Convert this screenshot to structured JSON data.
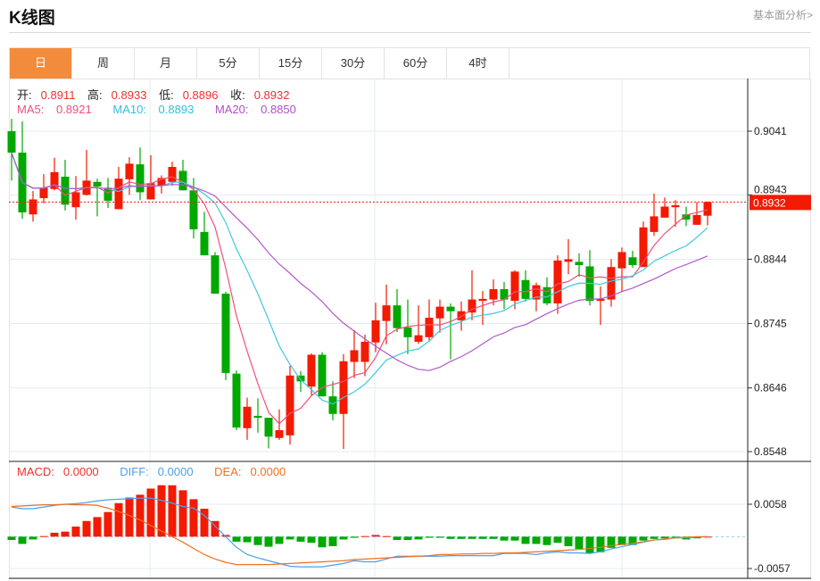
{
  "header": {
    "title": "K线图",
    "fundamental_link": "基本面分析>"
  },
  "tabs": [
    {
      "label": "日",
      "active": true
    },
    {
      "label": "周"
    },
    {
      "label": "月"
    },
    {
      "label": "5分"
    },
    {
      "label": "15分"
    },
    {
      "label": "30分"
    },
    {
      "label": "60分"
    },
    {
      "label": "4时"
    }
  ],
  "ohlc_info": {
    "open_label": "开:",
    "open": "0.8911",
    "high_label": "高:",
    "high": "0.8933",
    "low_label": "低:",
    "low": "0.8896",
    "close_label": "收:",
    "close": "0.8932"
  },
  "ma_info": {
    "ma5_label": "MA5: ",
    "ma5": "0.8921",
    "ma10_label": "MA10: ",
    "ma10": "0.8893",
    "ma20_label": "MA20: ",
    "ma20": "0.8850"
  },
  "macd_info": {
    "macd_label": "MACD:",
    "macd": "0.0000",
    "diff_label": "DIFF:",
    "diff": "0.0000",
    "dea_label": "DEA:",
    "dea": "0.0000"
  },
  "colors": {
    "up": "#f21a00",
    "down": "#00a800",
    "ma5": "#f0507a",
    "ma10": "#40c8e0",
    "ma20": "#b058c8",
    "diff": "#4aa0f0",
    "dea": "#f07020",
    "active_tab": "#f28c3c"
  },
  "chart_data": [
    {
      "type": "candlestick",
      "title": "K线图",
      "price_ticks": [
        "0.9041",
        "0.8943",
        "0.8844",
        "0.8745",
        "0.8646",
        "0.8548"
      ],
      "ylim": [
        0.8548,
        0.9041
      ],
      "last_price": "0.8932",
      "candles": [
        [
          0.9041,
          0.9008,
          0.906,
          0.8965
        ],
        [
          0.9008,
          0.8916,
          0.9056,
          0.8906
        ],
        [
          0.8913,
          0.8936,
          0.8949,
          0.8902
        ],
        [
          0.8938,
          0.8954,
          0.8975,
          0.893
        ],
        [
          0.8952,
          0.8978,
          0.9,
          0.895
        ],
        [
          0.8971,
          0.8928,
          0.8997,
          0.8919
        ],
        [
          0.8924,
          0.8947,
          0.8972,
          0.8905
        ],
        [
          0.8943,
          0.8965,
          0.9012,
          0.8942
        ],
        [
          0.8963,
          0.8956,
          0.8968,
          0.891
        ],
        [
          0.8954,
          0.8934,
          0.8969,
          0.8923
        ],
        [
          0.8921,
          0.8968,
          0.8986,
          0.8921
        ],
        [
          0.8967,
          0.8991,
          0.9001,
          0.8943
        ],
        [
          0.899,
          0.8947,
          0.9016,
          0.8935
        ],
        [
          0.8936,
          0.8961,
          0.9004,
          0.8936
        ],
        [
          0.8957,
          0.8969,
          0.8973,
          0.8945
        ],
        [
          0.8963,
          0.8986,
          0.8994,
          0.8957
        ],
        [
          0.898,
          0.895,
          0.8997,
          0.895
        ],
        [
          0.895,
          0.889,
          0.8969,
          0.8876
        ],
        [
          0.8886,
          0.885,
          0.8917,
          0.885
        ],
        [
          0.885,
          0.8791,
          0.8855,
          0.8791
        ],
        [
          0.8791,
          0.8669,
          0.8794,
          0.8658
        ],
        [
          0.8668,
          0.8585,
          0.8673,
          0.8581
        ],
        [
          0.8584,
          0.8617,
          0.8631,
          0.8566
        ],
        [
          0.8603,
          0.86,
          0.863,
          0.8577
        ],
        [
          0.86,
          0.8571,
          0.86,
          0.8553
        ],
        [
          0.8569,
          0.8581,
          0.8613,
          0.8566
        ],
        [
          0.8573,
          0.8665,
          0.868,
          0.8559
        ],
        [
          0.8665,
          0.8656,
          0.8672,
          0.864
        ],
        [
          0.8648,
          0.8697,
          0.8699,
          0.8635
        ],
        [
          0.8697,
          0.8633,
          0.8701,
          0.8633
        ],
        [
          0.8633,
          0.8606,
          0.8656,
          0.8596
        ],
        [
          0.8606,
          0.8687,
          0.8698,
          0.8552
        ],
        [
          0.8686,
          0.8704,
          0.8735,
          0.8661
        ],
        [
          0.8686,
          0.8717,
          0.8728,
          0.8664
        ],
        [
          0.8716,
          0.875,
          0.8777,
          0.8701
        ],
        [
          0.8749,
          0.8773,
          0.8805,
          0.8713
        ],
        [
          0.8773,
          0.8738,
          0.8798,
          0.8732
        ],
        [
          0.8739,
          0.8724,
          0.8782,
          0.8698
        ],
        [
          0.8717,
          0.8727,
          0.8773,
          0.8714
        ],
        [
          0.8724,
          0.8754,
          0.8782,
          0.8717
        ],
        [
          0.8753,
          0.8771,
          0.8782,
          0.8731
        ],
        [
          0.8771,
          0.8764,
          0.8776,
          0.869
        ],
        [
          0.875,
          0.8764,
          0.8779,
          0.8734
        ],
        [
          0.8762,
          0.8782,
          0.8827,
          0.875
        ],
        [
          0.878,
          0.8783,
          0.8795,
          0.8743
        ],
        [
          0.8782,
          0.8798,
          0.8813,
          0.8773
        ],
        [
          0.8798,
          0.8782,
          0.8809,
          0.8767
        ],
        [
          0.878,
          0.8825,
          0.8827,
          0.8767
        ],
        [
          0.8812,
          0.8783,
          0.8827,
          0.8779
        ],
        [
          0.8782,
          0.8804,
          0.8808,
          0.8764
        ],
        [
          0.8801,
          0.8776,
          0.8816,
          0.8773
        ],
        [
          0.8776,
          0.8842,
          0.885,
          0.876
        ],
        [
          0.884,
          0.8844,
          0.8875,
          0.8821
        ],
        [
          0.884,
          0.8835,
          0.8853,
          0.8817
        ],
        [
          0.8833,
          0.878,
          0.8858,
          0.8773
        ],
        [
          0.878,
          0.8783,
          0.8802,
          0.8743
        ],
        [
          0.8782,
          0.8832,
          0.8844,
          0.8771
        ],
        [
          0.883,
          0.8855,
          0.8862,
          0.8794
        ],
        [
          0.8847,
          0.8835,
          0.8857,
          0.8831
        ],
        [
          0.8832,
          0.8893,
          0.8902,
          0.8832
        ],
        [
          0.8886,
          0.891,
          0.8945,
          0.888
        ],
        [
          0.8908,
          0.8925,
          0.8939,
          0.8908
        ],
        [
          0.8924,
          0.8927,
          0.8935,
          0.8894
        ],
        [
          0.8913,
          0.8905,
          0.8925,
          0.8895
        ],
        [
          0.8897,
          0.8912,
          0.8932,
          0.8897
        ],
        [
          0.8911,
          0.8932,
          0.8933,
          0.8896
        ]
      ]
    },
    {
      "type": "bar",
      "title": "MACD",
      "ticks": [
        "0.0058",
        "-0.0057"
      ],
      "ylim": [
        -0.0057,
        0.0058
      ],
      "macd": [
        -0.0006,
        -0.0013,
        -0.0005,
        0.0001,
        0.0007,
        0.0009,
        0.0018,
        0.0028,
        0.0035,
        0.0044,
        0.006,
        0.007,
        0.0075,
        0.0086,
        0.0092,
        0.0092,
        0.0083,
        0.0067,
        0.005,
        0.0028,
        0.0003,
        -0.0009,
        -0.001,
        -0.0015,
        -0.0018,
        -0.0013,
        -0.0005,
        -0.0009,
        -0.0011,
        -0.0019,
        -0.0017,
        -0.0005,
        -0.0002,
        0.0001,
        0.0003,
        0.0001,
        -0.0006,
        -0.0006,
        -0.0005,
        -0.0002,
        -0.0002,
        -0.0004,
        -0.0004,
        -0.0004,
        -0.0004,
        -0.0004,
        -0.0007,
        -0.0007,
        -0.0013,
        -0.0013,
        -0.0015,
        -0.0011,
        -0.0017,
        -0.0022,
        -0.003,
        -0.0028,
        -0.002,
        -0.0015,
        -0.0015,
        -0.0007,
        -0.0004,
        -0.0003,
        -0.0003,
        -0.0005,
        -0.0003,
        0.0
      ],
      "diff": [
        0.0053,
        0.005,
        0.005,
        0.0053,
        0.0056,
        0.0058,
        0.0059,
        0.0061,
        0.0064,
        0.0066,
        0.0067,
        0.0068,
        0.0069,
        0.0069,
        0.0065,
        0.006,
        0.0054,
        0.0051,
        0.0038,
        0.0019,
        0.0,
        -0.0019,
        -0.0032,
        -0.0038,
        -0.0043,
        -0.0048,
        -0.0053,
        -0.0054,
        -0.0054,
        -0.0054,
        -0.0051,
        -0.0048,
        -0.0043,
        -0.0045,
        -0.0045,
        -0.004,
        -0.0035,
        -0.0035,
        -0.0035,
        -0.0035,
        -0.0035,
        -0.0034,
        -0.0034,
        -0.0034,
        -0.0034,
        -0.0034,
        -0.003,
        -0.003,
        -0.003,
        -0.0032,
        -0.0029,
        -0.0027,
        -0.0029,
        -0.0029,
        -0.003,
        -0.0027,
        -0.0022,
        -0.0018,
        -0.0014,
        -0.001,
        -0.0006,
        -0.0005,
        -0.0002,
        -0.0002,
        -0.0001,
        0.0
      ],
      "dea": [
        0.0054,
        0.0055,
        0.0056,
        0.0057,
        0.0057,
        0.0058,
        0.0057,
        0.0057,
        0.0056,
        0.0051,
        0.0045,
        0.0038,
        0.003,
        0.002,
        0.001,
        0.0,
        -0.001,
        -0.0021,
        -0.0032,
        -0.004,
        -0.0046,
        -0.005,
        -0.005,
        -0.005,
        -0.005,
        -0.0049,
        -0.0048,
        -0.0047,
        -0.0046,
        -0.0045,
        -0.0044,
        -0.0043,
        -0.0041,
        -0.004,
        -0.0039,
        -0.0038,
        -0.0037,
        -0.0036,
        -0.0035,
        -0.0034,
        -0.0032,
        -0.0032,
        -0.0031,
        -0.0031,
        -0.003,
        -0.003,
        -0.0029,
        -0.0029,
        -0.0028,
        -0.0027,
        -0.0026,
        -0.0025,
        -0.0024,
        -0.0023,
        -0.0021,
        -0.0019,
        -0.0016,
        -0.0014,
        -0.0012,
        -0.0009,
        -0.0006,
        -0.0004,
        -0.0002,
        -0.0001,
        0.0,
        0.0
      ]
    }
  ]
}
